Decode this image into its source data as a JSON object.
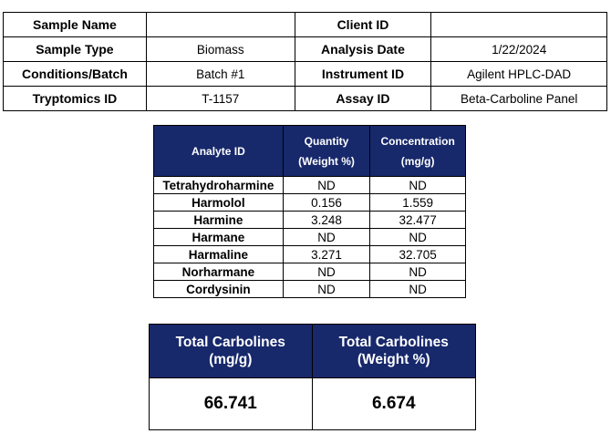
{
  "info": {
    "sample_name_label": "Sample Name",
    "sample_name_value": "",
    "client_id_label": "Client ID",
    "client_id_value": "",
    "sample_type_label": "Sample Type",
    "sample_type_value": "Biomass",
    "analysis_date_label": "Analysis Date",
    "analysis_date_value": "1/22/2024",
    "conditions_label": "Conditions/Batch",
    "conditions_value": "Batch #1",
    "instrument_label": "Instrument ID",
    "instrument_value": "Agilent HPLC-DAD",
    "tryptomics_label": "Tryptomics ID",
    "tryptomics_value": "T-1157",
    "assay_label": "Assay ID",
    "assay_value": "Beta-Carboline Panel"
  },
  "analytes": {
    "header_analyte": "Analyte ID",
    "header_quantity_1": "Quantity",
    "header_quantity_2": "(Weight %)",
    "header_concentration_1": "Concentration",
    "header_concentration_2": "(mg/g)",
    "rows": [
      {
        "name": "Tetrahydroharmine",
        "quantity": "ND",
        "concentration": "ND"
      },
      {
        "name": "Harmolol",
        "quantity": "0.156",
        "concentration": "1.559"
      },
      {
        "name": "Harmine",
        "quantity": "3.248",
        "concentration": "32.477"
      },
      {
        "name": "Harmane",
        "quantity": "ND",
        "concentration": "ND"
      },
      {
        "name": "Harmaline",
        "quantity": "3.271",
        "concentration": "32.705"
      },
      {
        "name": "Norharmane",
        "quantity": "ND",
        "concentration": "ND"
      },
      {
        "name": "Cordysinin",
        "quantity": "ND",
        "concentration": "ND"
      }
    ]
  },
  "totals": {
    "mg_header_1": "Total Carbolines",
    "mg_header_2": "(mg/g)",
    "wt_header_1": "Total Carbolines",
    "wt_header_2": "(Weight %)",
    "mg_value": "66.741",
    "wt_value": "6.674"
  },
  "colors": {
    "header_bg": "#17286b",
    "header_text": "#ffffff"
  }
}
